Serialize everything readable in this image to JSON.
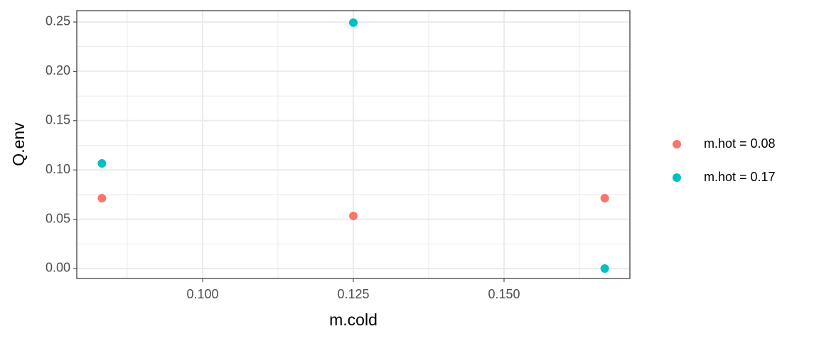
{
  "chart_data": {
    "type": "scatter",
    "x_label": "m.cold",
    "y_label": "Q.env",
    "xlim": [
      0.07913,
      0.17087
    ],
    "ylim": [
      -0.0101,
      0.2615
    ],
    "xticks": [
      {
        "value": 0.1,
        "label": "0.100"
      },
      {
        "value": 0.125,
        "label": "0.125"
      },
      {
        "value": 0.15,
        "label": "0.150"
      }
    ],
    "yticks": [
      {
        "value": 0,
        "label": "0.00"
      },
      {
        "value": 0.05,
        "label": "0.05"
      },
      {
        "value": 0.1,
        "label": "0.10"
      },
      {
        "value": 0.15,
        "label": "0.15"
      },
      {
        "value": 0.2,
        "label": "0.20"
      },
      {
        "value": 0.25,
        "label": "0.25"
      }
    ],
    "grid": true,
    "series": [
      {
        "name": "m.hot = 0.08",
        "color": "#F8766D",
        "x": [
          0.0833,
          0.125,
          0.1667
        ],
        "values": [
          0.0713,
          0.0533,
          0.0713
        ]
      },
      {
        "name": "m.hot = 0.17",
        "color": "#00BFC4",
        "x": [
          0.0833,
          0.125,
          0.1667
        ],
        "values": [
          0.1066,
          0.2493,
          0
        ]
      }
    ]
  }
}
